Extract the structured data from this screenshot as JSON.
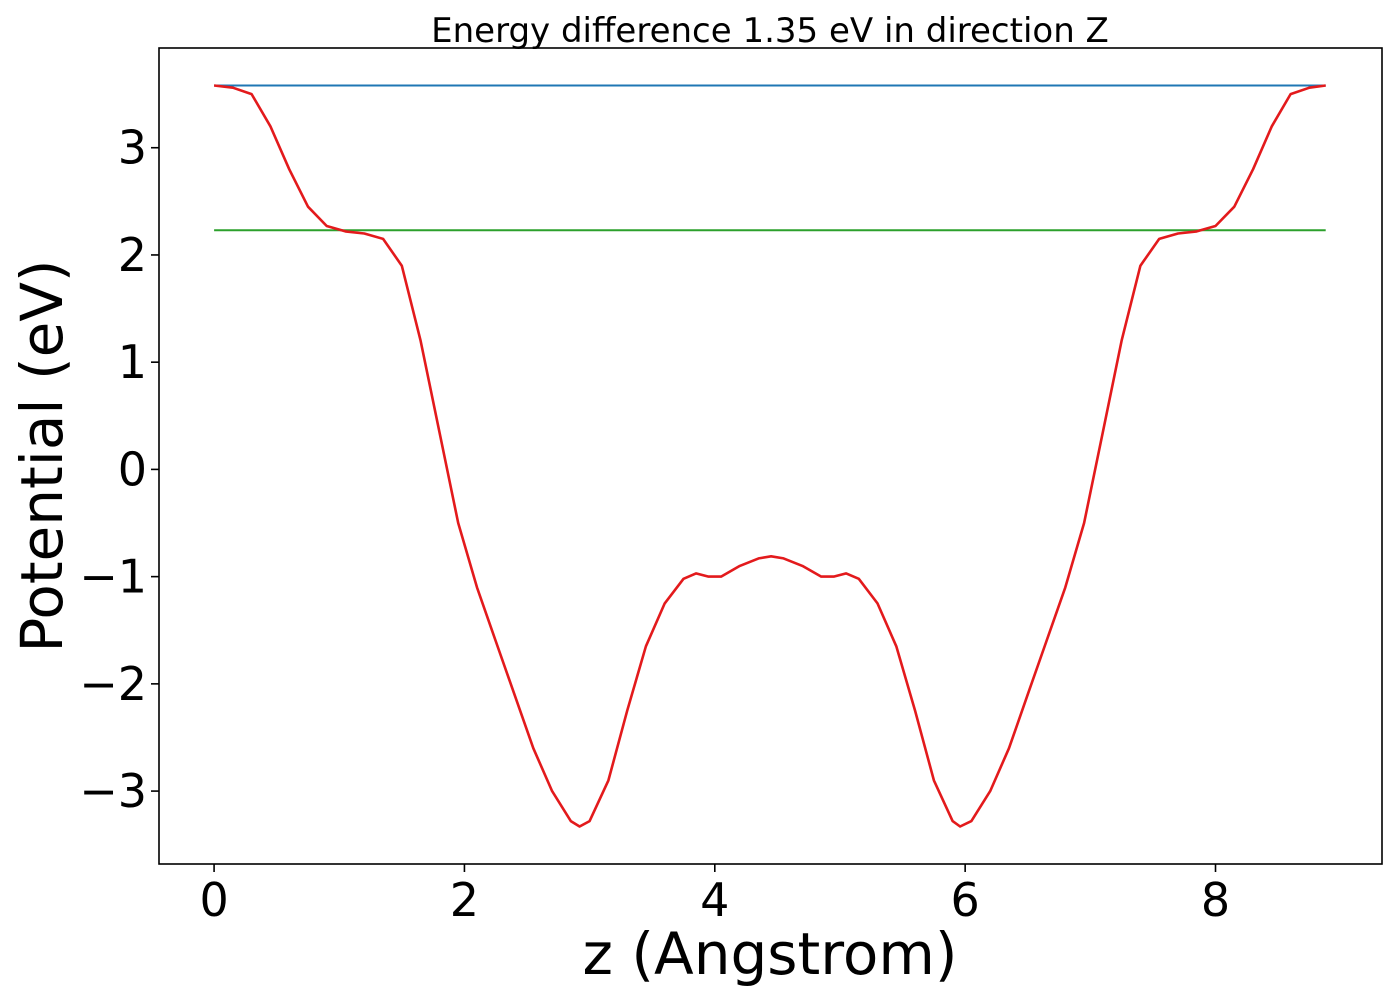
{
  "chart_data": {
    "type": "line",
    "title": "Energy difference 1.35 eV in direction Z",
    "xlabel": "z (Angstrom)",
    "ylabel": "Potential (eV)",
    "xlim": [
      -0.44,
      9.33
    ],
    "ylim": [
      -3.68,
      3.93
    ],
    "xticks": [
      0,
      2,
      4,
      6,
      8
    ],
    "xtick_labels": [
      "0",
      "2",
      "4",
      "6",
      "8"
    ],
    "yticks": [
      -3,
      -2,
      -1,
      0,
      1,
      2,
      3
    ],
    "ytick_labels": [
      "−3",
      "−2",
      "−1",
      "0",
      "1",
      "2",
      "3"
    ],
    "grid": false,
    "series": [
      {
        "color": "#1f77b4",
        "x": [
          0,
          8.88
        ],
        "y": [
          3.58,
          3.58
        ]
      },
      {
        "color": "#2ca02c",
        "x": [
          0,
          8.88
        ],
        "y": [
          2.23,
          2.23
        ]
      },
      {
        "color": "#e31a1c",
        "x": [
          0.0,
          0.15,
          0.3,
          0.45,
          0.6,
          0.75,
          0.9,
          1.05,
          1.2,
          1.35,
          1.5,
          1.65,
          1.8,
          1.95,
          2.1,
          2.25,
          2.4,
          2.55,
          2.7,
          2.85,
          2.92,
          3.0,
          3.15,
          3.3,
          3.45,
          3.6,
          3.75,
          3.85,
          3.95,
          4.05,
          4.2,
          4.35,
          4.45,
          4.55,
          4.7,
          4.85,
          4.95,
          5.05,
          5.15,
          5.3,
          5.45,
          5.6,
          5.75,
          5.9,
          5.96,
          6.05,
          6.2,
          6.35,
          6.5,
          6.65,
          6.8,
          6.95,
          7.1,
          7.25,
          7.4,
          7.55,
          7.7,
          7.85,
          8.0,
          8.15,
          8.3,
          8.45,
          8.6,
          8.75,
          8.88
        ],
        "y": [
          3.58,
          3.56,
          3.5,
          3.2,
          2.8,
          2.45,
          2.27,
          2.22,
          2.2,
          2.15,
          1.9,
          1.2,
          0.35,
          -0.5,
          -1.1,
          -1.6,
          -2.1,
          -2.6,
          -3.0,
          -3.28,
          -3.33,
          -3.28,
          -2.9,
          -2.25,
          -1.65,
          -1.25,
          -1.02,
          -0.97,
          -1.0,
          -1.0,
          -0.9,
          -0.83,
          -0.81,
          -0.83,
          -0.9,
          -1.0,
          -1.0,
          -0.97,
          -1.02,
          -1.25,
          -1.65,
          -2.25,
          -2.9,
          -3.28,
          -3.33,
          -3.28,
          -3.0,
          -2.6,
          -2.1,
          -1.6,
          -1.1,
          -0.5,
          0.35,
          1.2,
          1.9,
          2.15,
          2.2,
          2.22,
          2.27,
          2.45,
          2.8,
          3.2,
          3.5,
          3.56,
          3.58
        ]
      }
    ]
  }
}
